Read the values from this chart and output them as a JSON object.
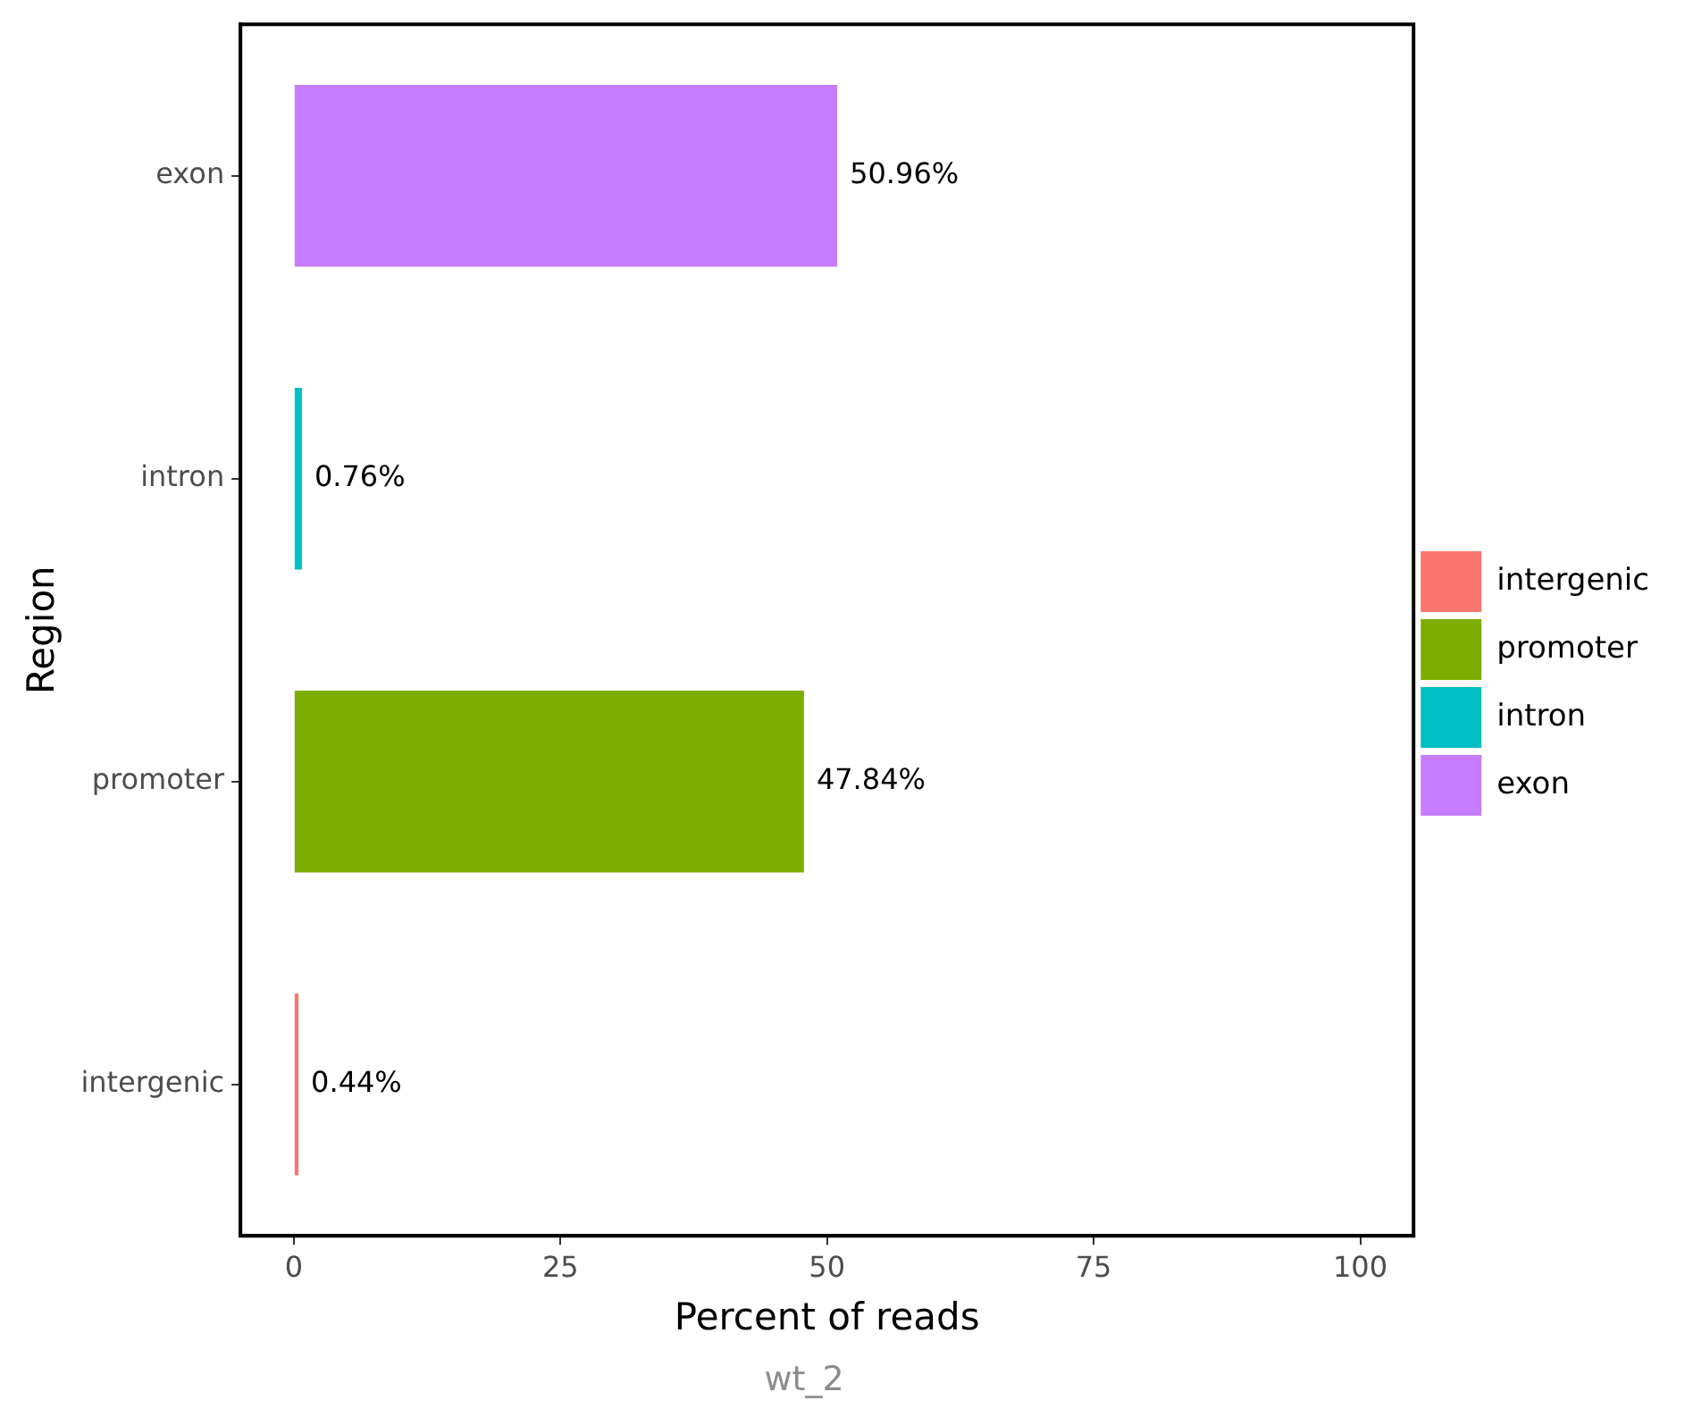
{
  "chart_data": {
    "type": "bar",
    "orientation": "horizontal",
    "xlabel": "Percent of reads",
    "ylabel": "Region",
    "categories": [
      "exon",
      "intron",
      "promoter",
      "intergenic"
    ],
    "series": [
      {
        "name": "intergenic",
        "color": "#f8766d",
        "values": [
          null,
          null,
          null,
          0.44
        ],
        "value_labels": [
          null,
          null,
          null,
          "0.44%"
        ]
      },
      {
        "name": "promoter",
        "color": "#7cae00",
        "values": [
          null,
          null,
          47.84,
          null
        ],
        "value_labels": [
          null,
          null,
          "47.84%",
          null
        ]
      },
      {
        "name": "intron",
        "color": "#00bfc4",
        "values": [
          null,
          0.76,
          null,
          null
        ],
        "value_labels": [
          null,
          "0.76%",
          null,
          null
        ]
      },
      {
        "name": "exon",
        "color": "#c77cff",
        "values": [
          50.96,
          null,
          null,
          null
        ],
        "value_labels": [
          "50.96%",
          null,
          null,
          null
        ]
      }
    ],
    "xlim": [
      -5,
      105
    ],
    "xticks": [
      0,
      25,
      50,
      75,
      100
    ],
    "grid": false,
    "legend": "right",
    "annotations": [
      "wt_2"
    ]
  }
}
